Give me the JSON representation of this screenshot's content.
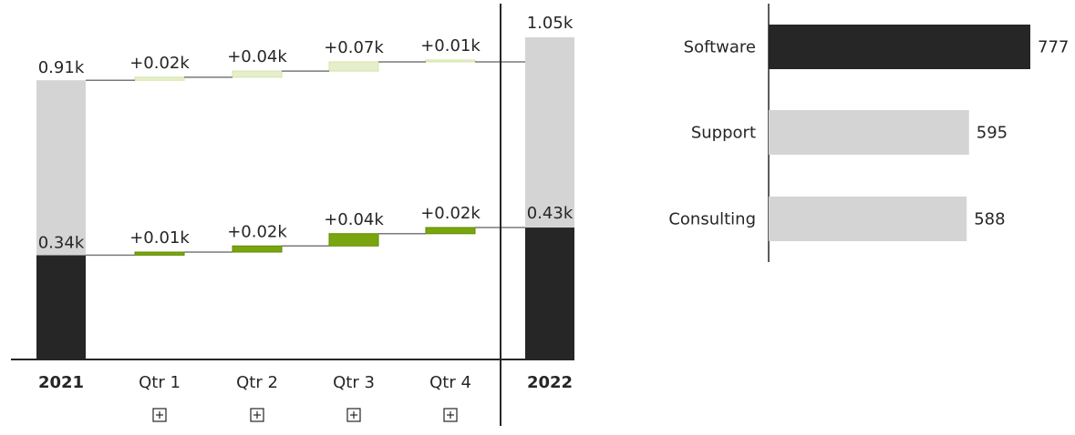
{
  "charts": {
    "waterfall": {
      "type": "bar",
      "categories": [
        "2021",
        "Qtr 1",
        "Qtr 2",
        "Qtr 3",
        "Qtr 4",
        "2022"
      ],
      "total_categories": [
        "2021",
        "2022"
      ],
      "expandable_categories": [
        "Qtr 1",
        "Qtr 2",
        "Qtr 3",
        "Qtr 4"
      ],
      "expand_icon": "plus-square-icon",
      "ylim": [
        0,
        1.05
      ],
      "units": "k",
      "series": [
        {
          "key": "lower",
          "start": 0.34,
          "deltas": [
            0.01,
            0.02,
            0.04,
            0.02
          ],
          "end": 0.43,
          "start_label": "0.34k",
          "delta_labels": [
            "+0.01k",
            "+0.02k",
            "+0.04k",
            "+0.02k"
          ],
          "end_label": "0.43k",
          "total_color": "#262626",
          "delta_color": "#7aa50e",
          "delta_stroke": "#5c8a00"
        },
        {
          "key": "upper",
          "start": 0.57,
          "deltas": [
            0.01,
            0.02,
            0.03,
            0.0
          ],
          "end": 0.62,
          "start_label": "0.91k",
          "delta_labels": [
            "+0.02k",
            "+0.04k",
            "+0.07k",
            "+0.01k"
          ],
          "end_label": "1.05k",
          "total_color": "#d4d4d4",
          "delta_color": "#e6efcc",
          "delta_stroke": "#d4e3a8"
        }
      ],
      "start_total": 0.91,
      "end_total": 1.05
    },
    "bars": {
      "type": "bar",
      "orientation": "horizontal",
      "categories": [
        "Software",
        "Support",
        "Consulting"
      ],
      "values": [
        777,
        595,
        588
      ],
      "value_labels": [
        "777",
        "595",
        "588"
      ],
      "xlim": [
        0,
        777
      ],
      "colors": [
        "#262626",
        "#d4d4d4",
        "#d4d4d4"
      ]
    }
  }
}
